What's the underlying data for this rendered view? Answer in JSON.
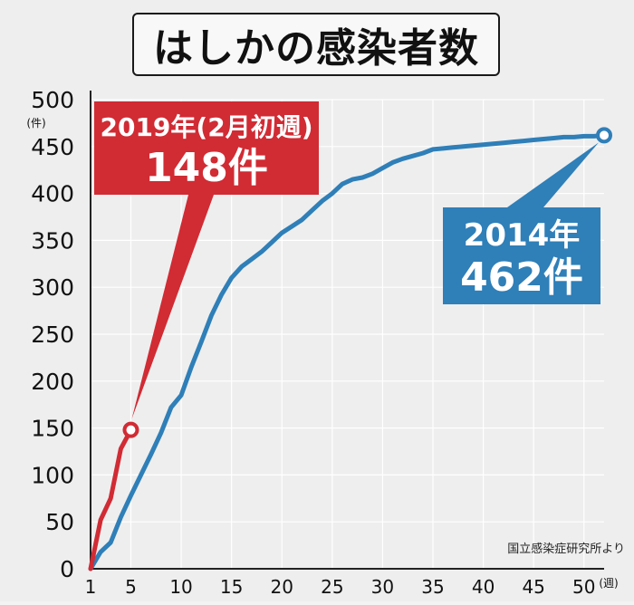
{
  "title": "はしかの感染者数",
  "source": "国立感染症研究所より",
  "colors": {
    "red": "#d12b34",
    "blue": "#2f7fb8",
    "grid": "#ffffff",
    "text": "#111111"
  },
  "chart_data": {
    "type": "line",
    "title": "はしかの感染者数",
    "y_unit": "(件)",
    "x_unit": "(週)",
    "xlim": [
      1,
      52
    ],
    "ylim": [
      0,
      500
    ],
    "x_ticks": [
      1,
      5,
      10,
      15,
      20,
      25,
      30,
      35,
      40,
      45,
      50
    ],
    "y_ticks": [
      0,
      50,
      100,
      150,
      200,
      250,
      300,
      350,
      400,
      450,
      500
    ],
    "grid": true,
    "series": [
      {
        "name": "2019年",
        "color": "#d12b34",
        "x": [
          1,
          2,
          3,
          4,
          5
        ],
        "y": [
          0,
          52,
          75,
          128,
          148
        ]
      },
      {
        "name": "2014年",
        "color": "#2f7fb8",
        "x": [
          1,
          2,
          3,
          4,
          5,
          6,
          7,
          8,
          9,
          10,
          11,
          12,
          13,
          14,
          15,
          16,
          17,
          18,
          19,
          20,
          21,
          22,
          23,
          24,
          25,
          26,
          27,
          28,
          29,
          30,
          31,
          32,
          33,
          34,
          35,
          36,
          37,
          38,
          39,
          40,
          41,
          42,
          43,
          44,
          45,
          46,
          47,
          48,
          49,
          50,
          51,
          52
        ],
        "y": [
          0,
          18,
          28,
          55,
          78,
          100,
          122,
          145,
          172,
          185,
          215,
          242,
          270,
          292,
          310,
          322,
          330,
          338,
          348,
          358,
          365,
          372,
          382,
          392,
          400,
          410,
          415,
          417,
          421,
          427,
          433,
          437,
          440,
          443,
          447,
          448,
          449,
          450,
          451,
          452,
          453,
          454,
          455,
          456,
          457,
          458,
          459,
          460,
          460,
          461,
          461,
          462
        ]
      }
    ],
    "annotations": [
      {
        "line1": "2019年(2月初週)",
        "line2": "148件",
        "x": 5,
        "y": 148,
        "color": "#d12b34"
      },
      {
        "line1": "2014年",
        "line2": "462件",
        "x": 52,
        "y": 462,
        "color": "#2f7fb8"
      }
    ]
  }
}
